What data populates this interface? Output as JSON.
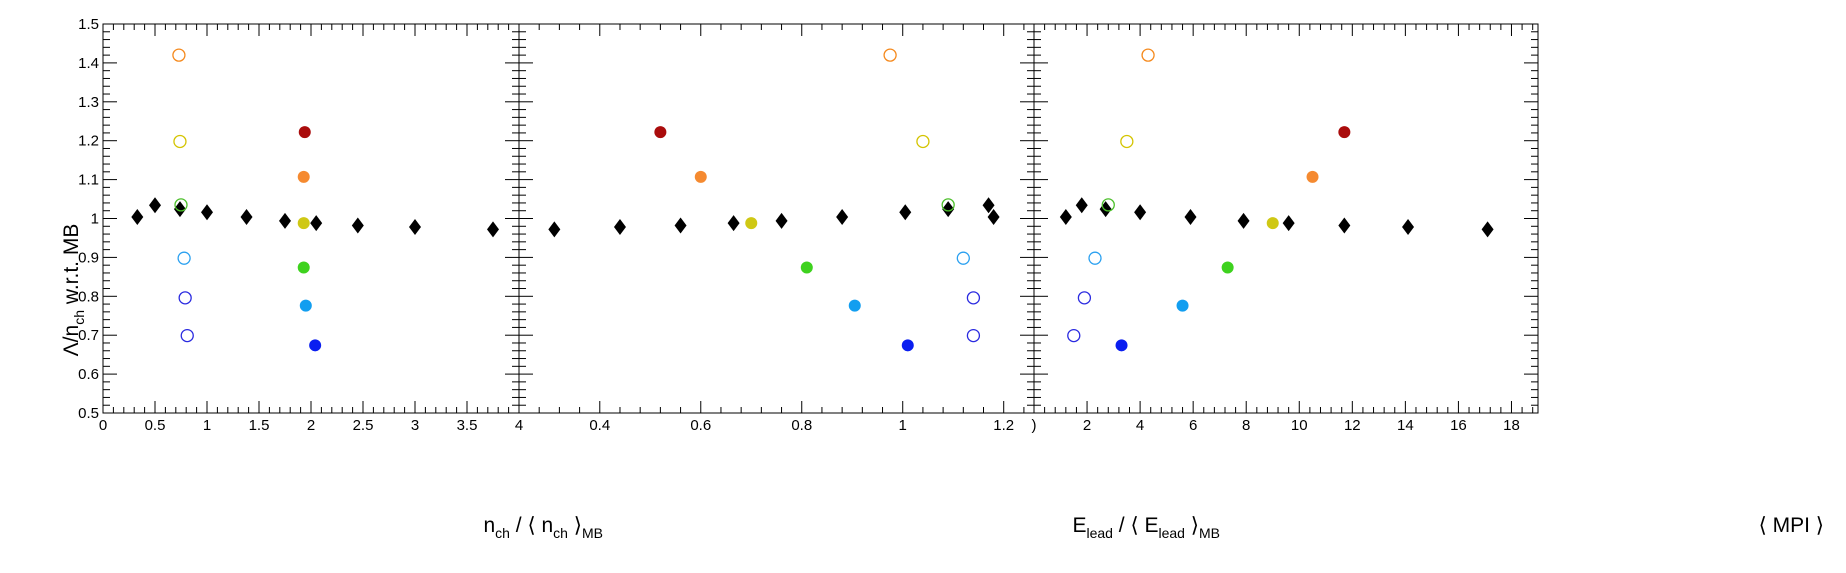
{
  "figure": {
    "ylabel": {
      "main": "Λ/n",
      "sub": "ch",
      "rest": " w.r.t. MB"
    }
  },
  "chart_data": [
    {
      "type": "scatter",
      "panel": "left",
      "xlabel": {
        "a": "n",
        "a_sub": "ch",
        "b": " / ⟨ n",
        "b_sub": "ch",
        "c": " ⟩",
        "c_sub": "MB"
      },
      "xlim": [
        0,
        4
      ],
      "ylim": [
        0.5,
        1.5
      ],
      "x_major_ticks": [
        0,
        0.5,
        1,
        1.5,
        2,
        2.5,
        3,
        3.5,
        4
      ],
      "x_tick_labels": [
        "0",
        "0.5",
        "1",
        "1.5",
        "2",
        "2.5",
        "3",
        "3.5",
        "4"
      ],
      "y_major_ticks": [
        0.5,
        0.6,
        0.7,
        0.8,
        0.9,
        1,
        1.1,
        1.2,
        1.3,
        1.4,
        1.5
      ],
      "y_tick_labels": [
        "0.5",
        "0.6",
        "0.7",
        "0.8",
        "0.9",
        "1",
        "1.1",
        "1.2",
        "1.3",
        "1.4",
        "1.5"
      ],
      "series": [
        {
          "marker": "diamond",
          "color": "#000000",
          "x": [
            0.33,
            0.5,
            0.74,
            1.0,
            1.38,
            1.75,
            2.05,
            2.45,
            3.0,
            3.75
          ],
          "y": [
            1.004,
            1.034,
            1.024,
            1.016,
            1.004,
            0.994,
            0.988,
            0.982,
            0.978,
            0.972
          ]
        },
        {
          "marker": "open-circle",
          "colors": [
            "#f58a1e",
            "#d4c400",
            "#4cbf2a",
            "#2aa0f0",
            "#2a2ae0",
            "#2a2ae0"
          ],
          "x": [
            0.73,
            0.74,
            0.75,
            0.78,
            0.79,
            0.81
          ],
          "y": [
            1.42,
            1.198,
            1.035,
            0.898,
            0.796,
            0.699
          ]
        },
        {
          "marker": "filled-circle",
          "colors": [
            "#aa0c0c",
            "#f58a30",
            "#cfc814",
            "#3ed21e",
            "#129ef0",
            "#0a1ef0"
          ],
          "x": [
            1.94,
            1.93,
            1.93,
            1.93,
            1.95,
            2.04
          ],
          "y": [
            1.222,
            1.107,
            0.988,
            0.874,
            0.776,
            0.674
          ]
        }
      ]
    },
    {
      "type": "scatter",
      "panel": "middle",
      "xlabel": {
        "a": "E",
        "a_sub": "lead",
        "b": " / ⟨ E",
        "b_sub": "lead",
        "c": " ⟩",
        "c_sub": "MB"
      },
      "xlim": [
        0.24,
        1.26
      ],
      "ylim": [
        0.5,
        1.5
      ],
      "x_major_ticks": [
        0.4,
        0.6,
        0.8,
        1,
        1.2
      ],
      "x_tick_labels": [
        "0.4",
        "0.6",
        "0.8",
        "1",
        "1.2"
      ],
      "series": [
        {
          "marker": "diamond",
          "color": "#000000",
          "x": [
            0.31,
            0.44,
            0.56,
            0.665,
            0.76,
            0.88,
            1.005,
            1.09,
            1.17,
            1.18
          ],
          "y": [
            0.972,
            0.978,
            0.982,
            0.988,
            0.994,
            1.004,
            1.016,
            1.024,
            1.034,
            1.004
          ]
        },
        {
          "marker": "open-circle",
          "colors": [
            "#f58a1e",
            "#d4c400",
            "#4cbf2a",
            "#2aa0f0",
            "#2a2ae0",
            "#2a2ae0"
          ],
          "x": [
            0.975,
            1.04,
            1.09,
            1.12,
            1.14,
            1.14
          ],
          "y": [
            1.42,
            1.198,
            1.035,
            0.898,
            0.796,
            0.699
          ]
        },
        {
          "marker": "filled-circle",
          "colors": [
            "#aa0c0c",
            "#f58a30",
            "#cfc814",
            "#3ed21e",
            "#129ef0",
            "#0a1ef0"
          ],
          "x": [
            0.52,
            0.6,
            0.7,
            0.81,
            0.905,
            1.01
          ],
          "y": [
            1.222,
            1.107,
            0.988,
            0.874,
            0.776,
            0.674
          ]
        }
      ]
    },
    {
      "type": "scatter",
      "panel": "right",
      "xlabel": {
        "a": "⟨ MPI ⟩"
      },
      "xlim": [
        0,
        19
      ],
      "ylim": [
        0.5,
        1.5
      ],
      "x_major_ticks": [
        0,
        2,
        4,
        6,
        8,
        10,
        12,
        14,
        16,
        18
      ],
      "x_tick_labels": [
        ")",
        "2",
        "4",
        "6",
        "8",
        "10",
        "12",
        "14",
        "16",
        "18"
      ],
      "series": [
        {
          "marker": "diamond",
          "color": "#000000",
          "x": [
            1.2,
            1.8,
            2.7,
            4.0,
            5.9,
            7.9,
            9.6,
            11.7,
            14.1,
            17.1
          ],
          "y": [
            1.004,
            1.034,
            1.024,
            1.016,
            1.004,
            0.994,
            0.988,
            0.982,
            0.978,
            0.972
          ]
        },
        {
          "marker": "open-circle",
          "colors": [
            "#f58a1e",
            "#d4c400",
            "#4cbf2a",
            "#2aa0f0",
            "#2a2ae0",
            "#2a2ae0"
          ],
          "x": [
            4.3,
            3.5,
            2.8,
            2.3,
            1.9,
            1.5
          ],
          "y": [
            1.42,
            1.198,
            1.035,
            0.898,
            0.796,
            0.699
          ]
        },
        {
          "marker": "filled-circle",
          "colors": [
            "#aa0c0c",
            "#f58a30",
            "#cfc814",
            "#3ed21e",
            "#129ef0",
            "#0a1ef0"
          ],
          "x": [
            11.7,
            10.5,
            9.0,
            7.3,
            5.6,
            3.3
          ],
          "y": [
            1.222,
            1.107,
            0.988,
            0.874,
            0.776,
            0.674
          ]
        }
      ]
    }
  ]
}
